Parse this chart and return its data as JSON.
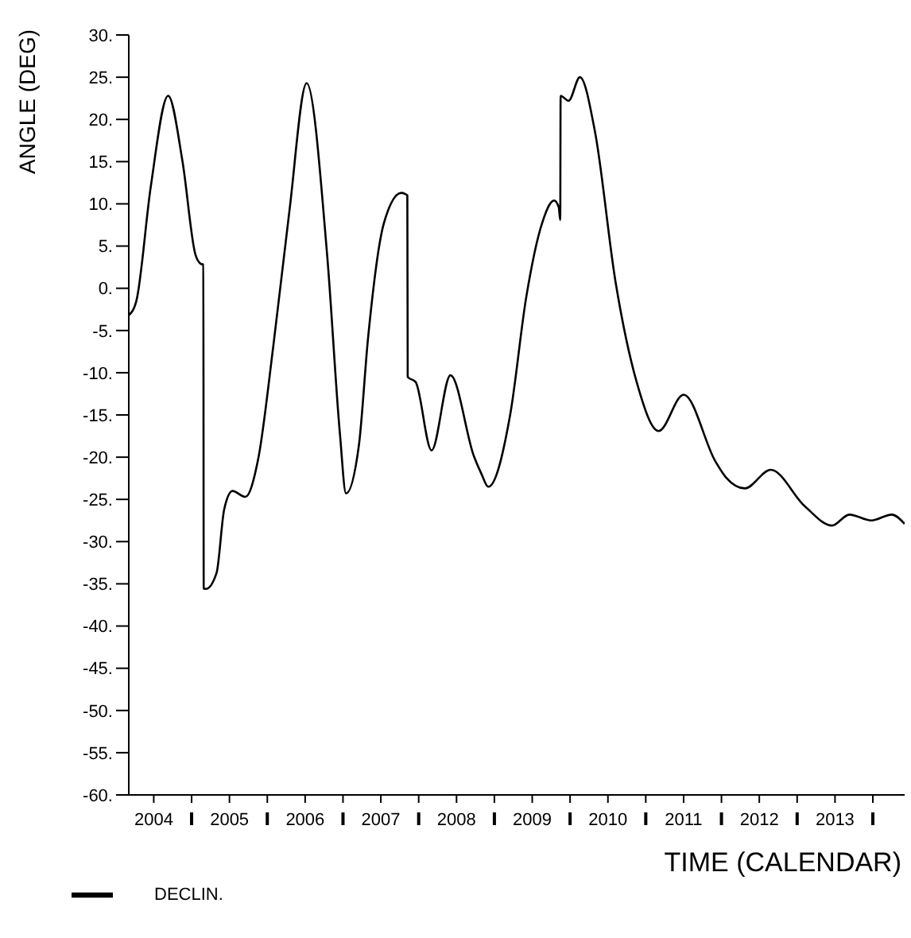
{
  "chart_data": {
    "type": "line",
    "xlabel": "TIME (CALENDAR)",
    "ylabel": "ANGLE (DEG)",
    "xlim": [
      2004.17,
      2014.42
    ],
    "xticks": [
      {
        "value": 2004.5,
        "label": "2004"
      },
      {
        "value": 2005,
        "label": null
      },
      {
        "value": 2005.5,
        "label": "2005"
      },
      {
        "value": 2006,
        "label": null
      },
      {
        "value": 2006.5,
        "label": "2006"
      },
      {
        "value": 2007,
        "label": null
      },
      {
        "value": 2007.5,
        "label": "2007"
      },
      {
        "value": 2008,
        "label": null
      },
      {
        "value": 2008.5,
        "label": "2008"
      },
      {
        "value": 2009,
        "label": null
      },
      {
        "value": 2009.5,
        "label": "2009"
      },
      {
        "value": 2010,
        "label": null
      },
      {
        "value": 2010.5,
        "label": "2010"
      },
      {
        "value": 2011,
        "label": null
      },
      {
        "value": 2011.5,
        "label": "2011"
      },
      {
        "value": 2012,
        "label": null
      },
      {
        "value": 2012.5,
        "label": "2012"
      },
      {
        "value": 2013,
        "label": null
      },
      {
        "value": 2013.5,
        "label": "2013"
      },
      {
        "value": 2014,
        "label": null
      }
    ],
    "ylim": [
      -60,
      30
    ],
    "yticks": [
      {
        "value": -60,
        "label": "-60."
      },
      {
        "value": -55,
        "label": "-55."
      },
      {
        "value": -50,
        "label": "-50."
      },
      {
        "value": -45,
        "label": "-45."
      },
      {
        "value": -40,
        "label": "-40."
      },
      {
        "value": -35,
        "label": "-35."
      },
      {
        "value": -30,
        "label": "-30."
      },
      {
        "value": -25,
        "label": "-25."
      },
      {
        "value": -20,
        "label": "-20."
      },
      {
        "value": -15,
        "label": "-15."
      },
      {
        "value": -10,
        "label": "-10."
      },
      {
        "value": -5,
        "label": "-5."
      },
      {
        "value": 0,
        "label": "0."
      },
      {
        "value": 5,
        "label": "5."
      },
      {
        "value": 10,
        "label": "10."
      },
      {
        "value": 15,
        "label": "15."
      },
      {
        "value": 20,
        "label": "20."
      },
      {
        "value": 25,
        "label": "25."
      },
      {
        "value": 30,
        "label": "30."
      }
    ],
    "legend": "bottom left",
    "marker": "none",
    "line_style": "solid",
    "series": [
      {
        "name": "DECLIN.",
        "color": "#000000",
        "x": [
          2004.17,
          2004.27,
          2004.46,
          2004.69,
          2004.88,
          2005.05,
          2005.12,
          2005.155,
          2005.16,
          2005.19,
          2005.33,
          2005.43,
          2005.54,
          2005.71,
          2005.88,
          2006.08,
          2006.29,
          2006.52,
          2006.79,
          2006.96,
          2007.04,
          2007.21,
          2007.33,
          2007.54,
          2007.77,
          2007.85,
          2007.855,
          2007.96,
          2008.17,
          2008.42,
          2008.73,
          2008.83,
          2008.92,
          2009.21,
          2009.42,
          2009.63,
          2009.79,
          2009.85,
          2009.87,
          2009.875,
          2009.98,
          2010.13,
          2010.33,
          2010.6,
          2010.88,
          2011.17,
          2011.5,
          2011.92,
          2012.06,
          2012.31,
          2012.65,
          2013.1,
          2013.46,
          2013.69,
          2013.98,
          2014.25,
          2014.42
        ],
        "values": [
          -3.2,
          -1.5,
          12,
          22.8,
          15,
          4,
          2.9,
          2.8,
          -35.6,
          -35.6,
          -33.7,
          -26.2,
          -24,
          -24.7,
          -20.2,
          -6.8,
          9,
          24.3,
          4,
          -17.3,
          -24.3,
          -18.6,
          -6,
          7.7,
          11.3,
          11,
          -10.5,
          -11.1,
          -19.2,
          -10.3,
          -19.9,
          -22,
          -23.5,
          -14.9,
          -1.1,
          7.7,
          10.4,
          9.6,
          8.1,
          22.8,
          22.2,
          25,
          18.5,
          0.8,
          -11.1,
          -16.9,
          -12.6,
          -20.5,
          -22.4,
          -23.7,
          -21.5,
          -25.8,
          -28.1,
          -26.8,
          -27.5,
          -26.8,
          -27.9
        ]
      }
    ]
  }
}
